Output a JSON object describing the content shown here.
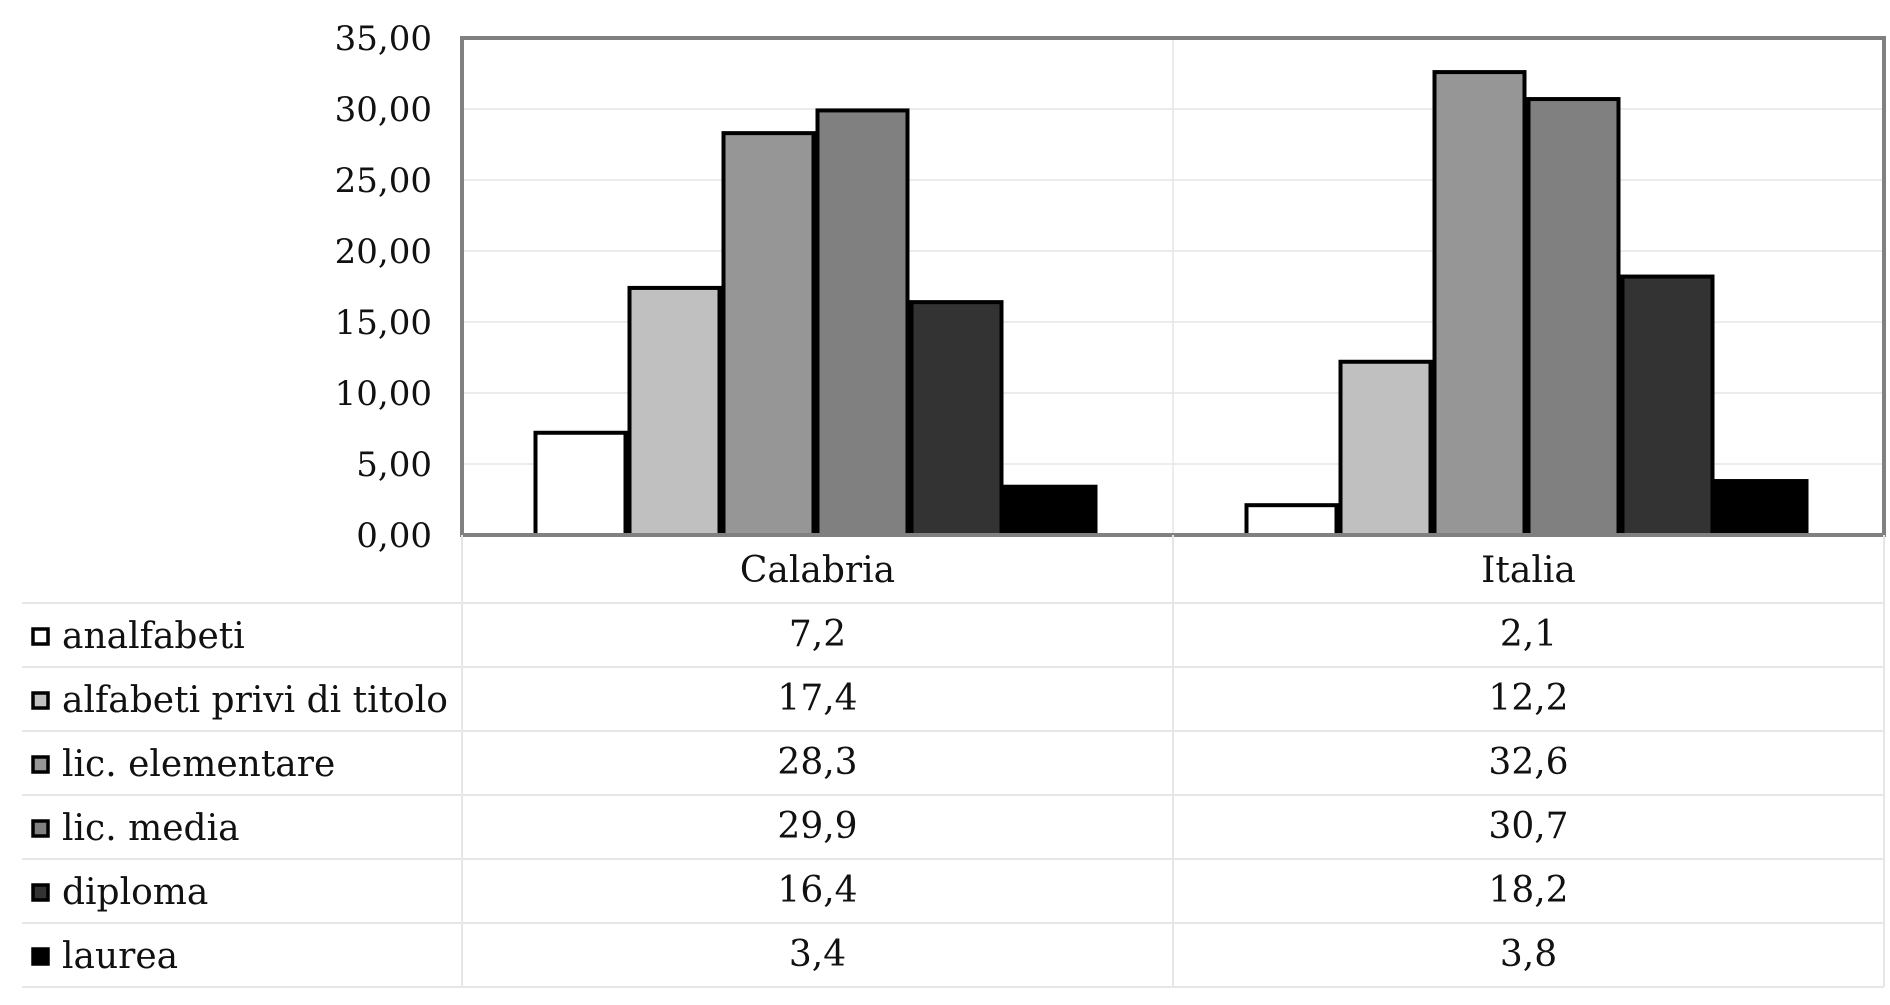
{
  "chart_data": {
    "type": "bar",
    "categories": [
      "Calabria",
      "Italia"
    ],
    "series": [
      {
        "name": "analfabeti",
        "values": [
          7.2,
          2.1
        ],
        "labels": [
          "7,2",
          "2,1"
        ],
        "color": "#ffffff"
      },
      {
        "name": "alfabeti privi di titolo",
        "values": [
          17.4,
          12.2
        ],
        "labels": [
          "17,4",
          "12,2"
        ],
        "color": "#c0c0c0"
      },
      {
        "name": "lic. elementare",
        "values": [
          28.3,
          32.6
        ],
        "labels": [
          "28,3",
          "32,6"
        ],
        "color": "#969696"
      },
      {
        "name": "lic. media",
        "values": [
          29.9,
          30.7
        ],
        "labels": [
          "29,9",
          "30,7"
        ],
        "color": "#808080"
      },
      {
        "name": "diploma",
        "values": [
          16.4,
          18.2
        ],
        "labels": [
          "16,4",
          "18,2"
        ],
        "color": "#333333"
      },
      {
        "name": "laurea",
        "values": [
          3.4,
          3.8
        ],
        "labels": [
          "3,4",
          "3,8"
        ],
        "color": "#000000"
      }
    ],
    "yticks": [
      "0,00",
      "5,00",
      "10,00",
      "15,00",
      "20,00",
      "25,00",
      "30,00",
      "35,00"
    ],
    "ylim": [
      0,
      35
    ],
    "grid": true,
    "legend": "data-table",
    "title": "",
    "xlabel": "",
    "ylabel": ""
  }
}
